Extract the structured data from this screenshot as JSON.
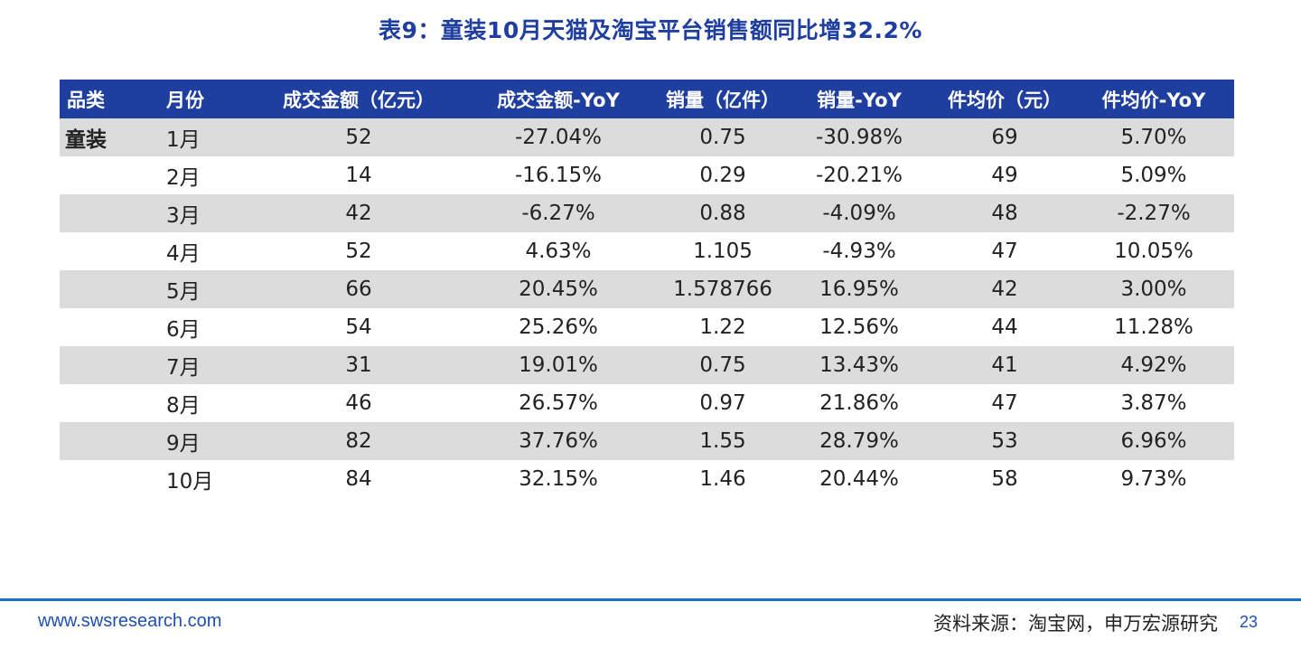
{
  "title": "表9：童装10月天猫及淘宝平台销售额同比增32.2%",
  "table": {
    "headers": [
      "品类",
      "月份",
      "成交金额（亿元）",
      "成交金额-YoY",
      "销量（亿件）",
      "销量-YoY",
      "件均价（元）",
      "件均价-YoY"
    ],
    "category": "童装",
    "rows": [
      [
        "1月",
        "52",
        "-27.04%",
        "0.75",
        "-30.98%",
        "69",
        "5.70%"
      ],
      [
        "2月",
        "14",
        "-16.15%",
        "0.29",
        "-20.21%",
        "49",
        "5.09%"
      ],
      [
        "3月",
        "42",
        "-6.27%",
        "0.88",
        "-4.09%",
        "48",
        "-2.27%"
      ],
      [
        "4月",
        "52",
        "4.63%",
        "1.105",
        "-4.93%",
        "47",
        "10.05%"
      ],
      [
        "5月",
        "66",
        "20.45%",
        "1.578766",
        "16.95%",
        "42",
        "3.00%"
      ],
      [
        "6月",
        "54",
        "25.26%",
        "1.22",
        "12.56%",
        "44",
        "11.28%"
      ],
      [
        "7月",
        "31",
        "19.01%",
        "0.75",
        "13.43%",
        "41",
        "4.92%"
      ],
      [
        "8月",
        "46",
        "26.57%",
        "0.97",
        "21.86%",
        "47",
        "3.87%"
      ],
      [
        "9月",
        "82",
        "37.76%",
        "1.55",
        "28.79%",
        "53",
        "6.96%"
      ],
      [
        "10月",
        "84",
        "32.15%",
        "1.46",
        "20.44%",
        "58",
        "9.73%"
      ]
    ]
  },
  "footer": {
    "website": "www.swsresearch.com",
    "source": "资料来源：淘宝网，申万宏源研究",
    "page": "23"
  },
  "colors": {
    "title": "#1f3fa0",
    "header_bg": "#1f3fa0",
    "row_shade": "#dcdcdc",
    "divider": "#1e6fc0"
  }
}
